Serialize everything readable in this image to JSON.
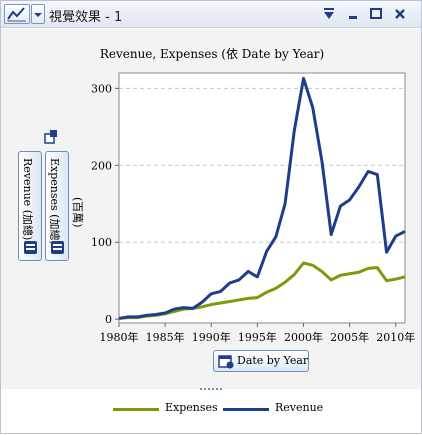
{
  "window": {
    "title": "視覺效果 - 1"
  },
  "chart_data": {
    "type": "line",
    "title": "Revenue, Expenses (依 Date by Year)",
    "xlabel": "Date by Year",
    "ylabel": "(百萬)",
    "xlim": [
      1980,
      2011
    ],
    "ylim": [
      -5,
      320
    ],
    "y_ticks": [
      0,
      100,
      200,
      300
    ],
    "x_ticks": [
      {
        "value": 1980,
        "label": "1980年"
      },
      {
        "value": 1985,
        "label": "1985年"
      },
      {
        "value": 1990,
        "label": "1990年"
      },
      {
        "value": 1995,
        "label": "1995年"
      },
      {
        "value": 2000,
        "label": "2000年"
      },
      {
        "value": 2005,
        "label": "2005年"
      },
      {
        "value": 2010,
        "label": "2010年"
      }
    ],
    "grid": "horizontal-dashed",
    "legend_position": "bottom",
    "x": [
      1980,
      1981,
      1982,
      1983,
      1984,
      1985,
      1986,
      1987,
      1988,
      1989,
      1990,
      1991,
      1992,
      1993,
      1994,
      1995,
      1996,
      1997,
      1998,
      1999,
      2000,
      2001,
      2002,
      2003,
      2004,
      2005,
      2006,
      2007,
      2008,
      2009,
      2010,
      2011
    ],
    "series": [
      {
        "name": "Expenses",
        "color": "#7a9c0b",
        "values": [
          1,
          2,
          2,
          4,
          5,
          7,
          10,
          13,
          14,
          16,
          19,
          21,
          23,
          25,
          27,
          28,
          35,
          40,
          48,
          58,
          73,
          70,
          62,
          51,
          57,
          59,
          61,
          66,
          67,
          50,
          52,
          55
        ]
      },
      {
        "name": "Revenue",
        "color": "#1f3d8b",
        "values": [
          1,
          3,
          3,
          5,
          6,
          8,
          13,
          15,
          14,
          22,
          33,
          36,
          47,
          51,
          62,
          55,
          88,
          107,
          150,
          245,
          313,
          275,
          205,
          110,
          147,
          155,
          172,
          192,
          188,
          87,
          108,
          114
        ]
      }
    ]
  },
  "left_panel": {
    "measure_buttons": [
      {
        "label": "Revenue (加總)"
      },
      {
        "label": "Expenses (加總)"
      }
    ]
  },
  "x_role": {
    "label": "Date by Year"
  },
  "legend": {
    "items": [
      {
        "label": "Expenses",
        "color": "#7a9c0b"
      },
      {
        "label": "Revenue",
        "color": "#1f3d8b"
      }
    ]
  }
}
